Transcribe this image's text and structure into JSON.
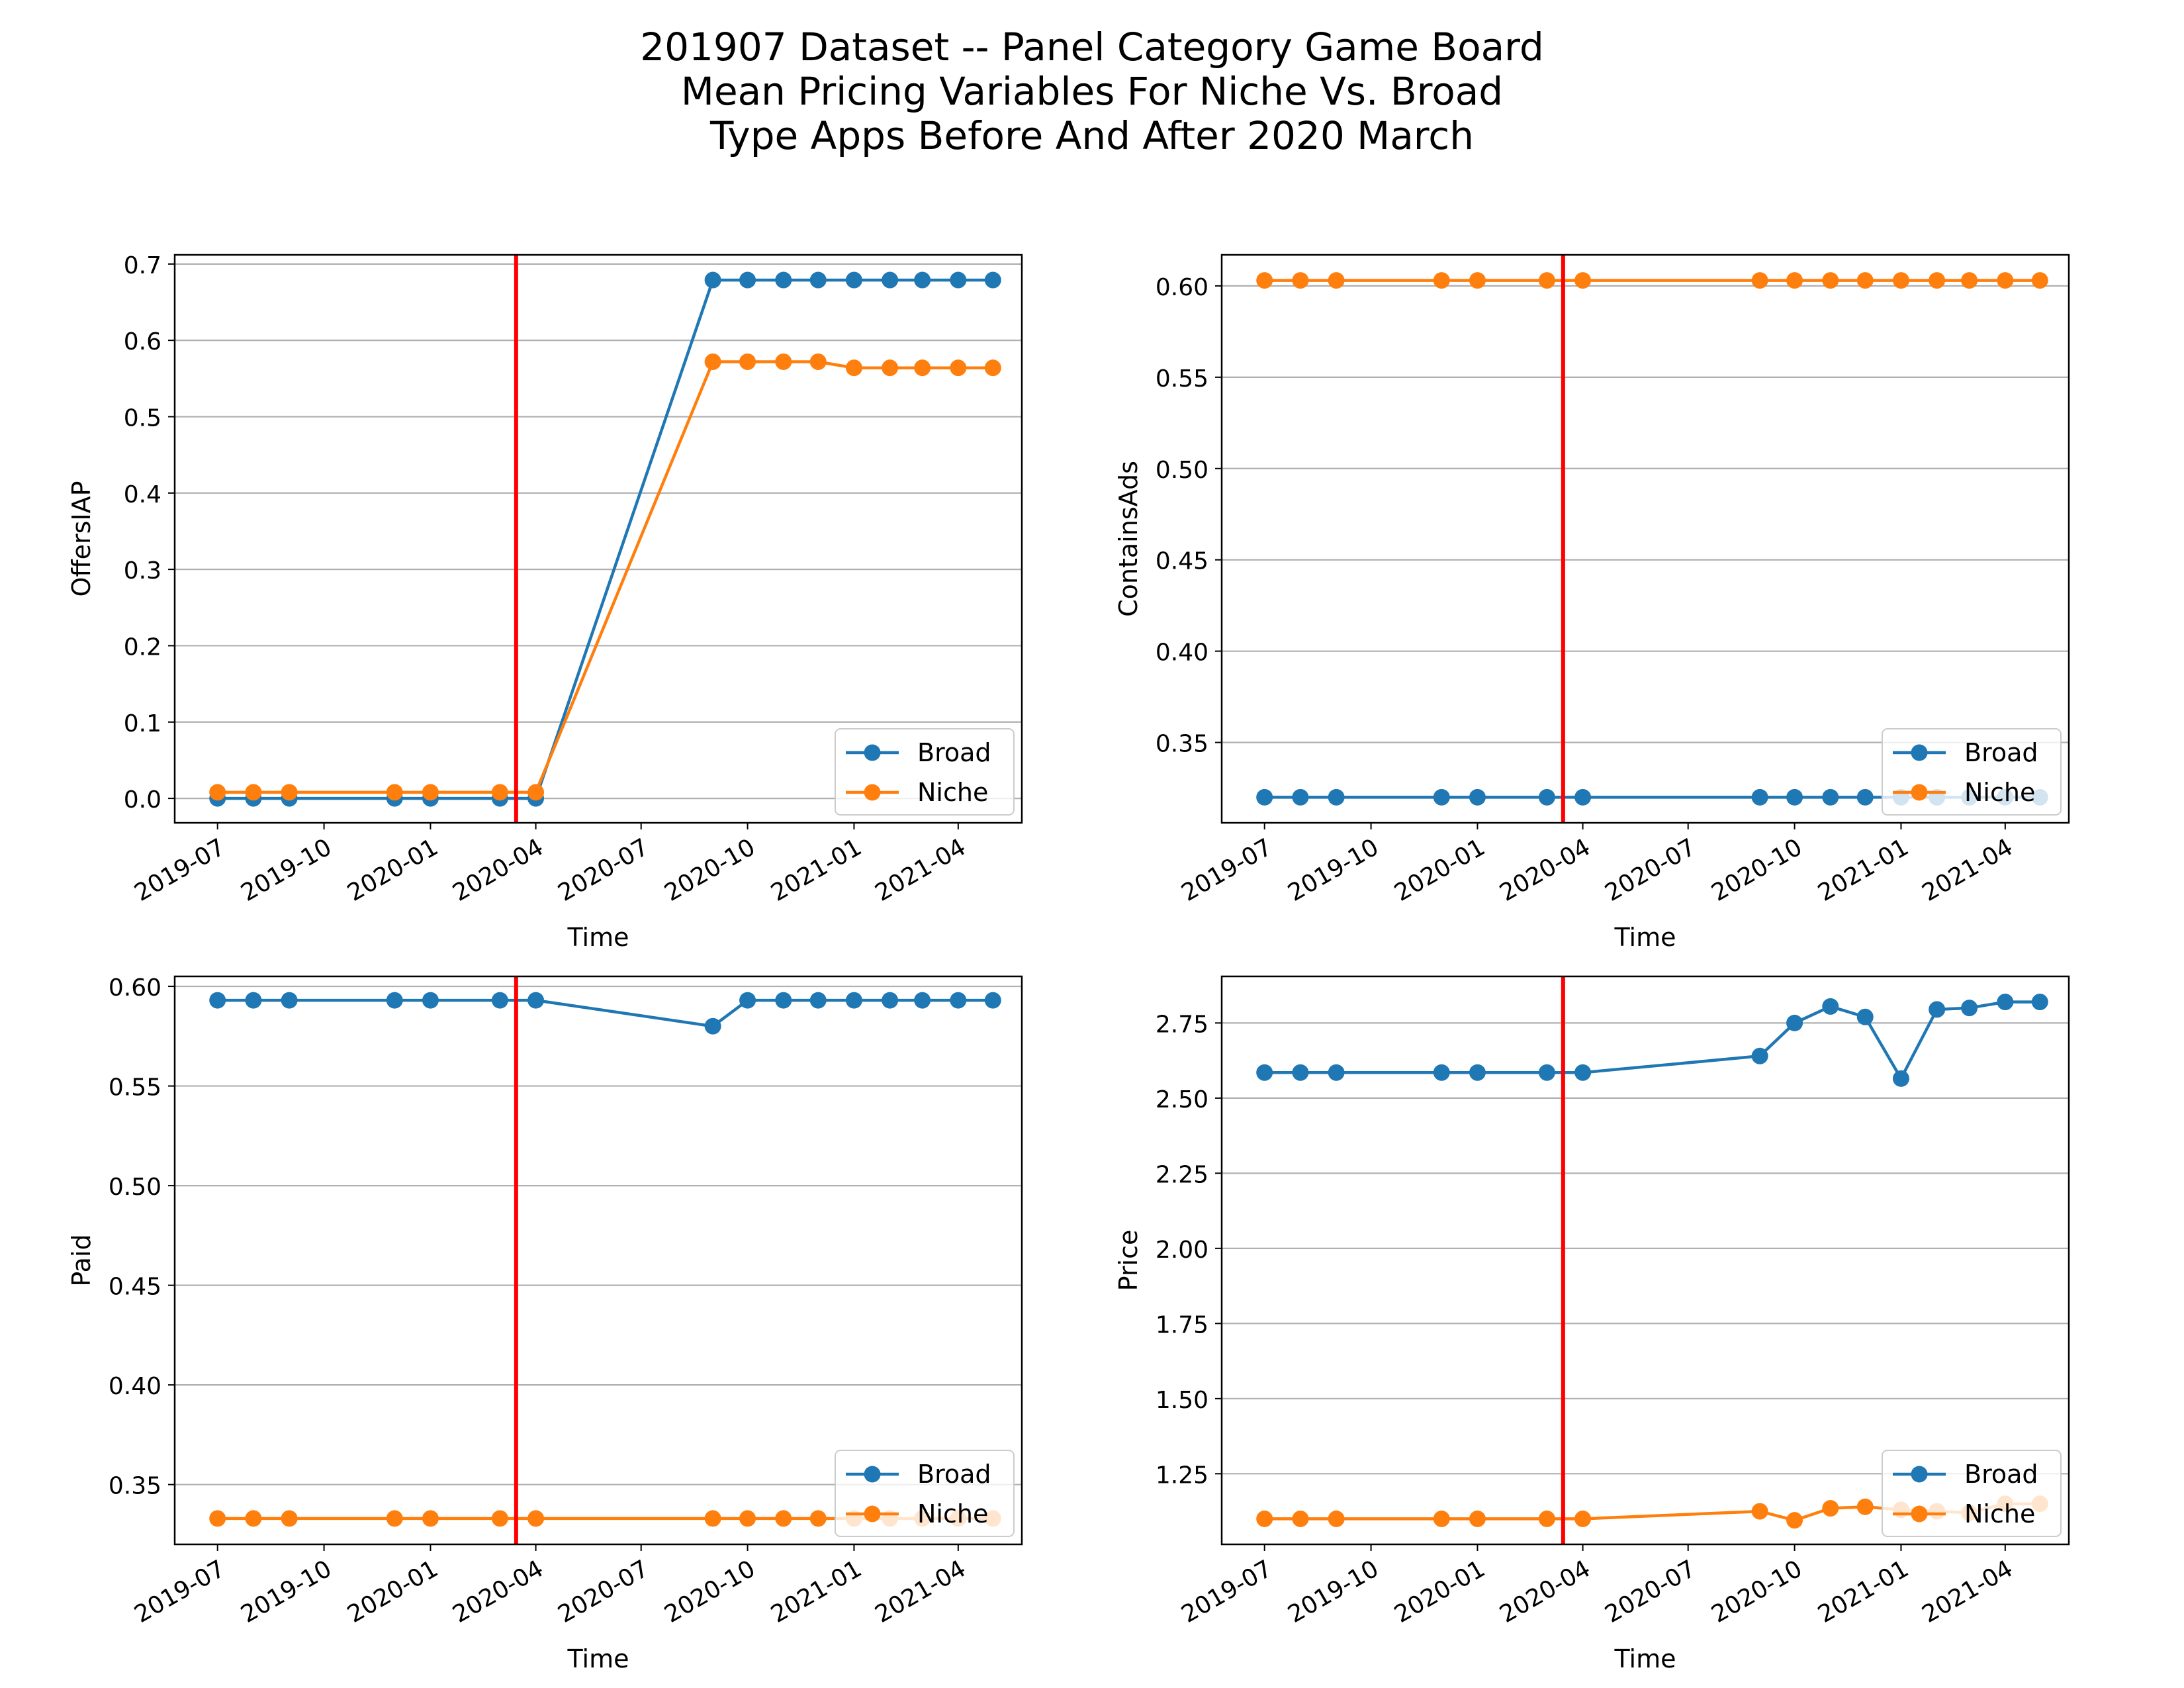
{
  "figure": {
    "title_lines": [
      "201907 Dataset -- Panel Category Game Board",
      "Mean Pricing Variables For Niche Vs. Broad",
      "Type Apps Before And After 2020 March"
    ]
  },
  "colors": {
    "broad": "#1f77b4",
    "niche": "#ff7f0e",
    "event_line": "#ff0000",
    "grid": "#b0b0b0"
  },
  "chart_data": [
    {
      "type": "line",
      "xlabel": "Time",
      "ylabel": "OffersIAP",
      "ylim": [
        -0.032,
        0.712
      ],
      "yticks": [
        0.0,
        0.1,
        0.2,
        0.3,
        0.4,
        0.5,
        0.6,
        0.7
      ],
      "ytick_labels": [
        "0.0",
        "0.1",
        "0.2",
        "0.3",
        "0.4",
        "0.5",
        "0.6",
        "0.7"
      ],
      "xlim": [
        "2019-05-25",
        "2021-05-26"
      ],
      "xtick_labels": [
        "2019-07",
        "2019-10",
        "2020-01",
        "2020-04",
        "2020-07",
        "2020-10",
        "2021-01",
        "2021-04"
      ],
      "event_date": "2020-03-15",
      "grid": "y",
      "legend": "lower right",
      "series": [
        {
          "name": "Broad",
          "x": [
            "2019-07-01",
            "2019-08-01",
            "2019-09-01",
            "2019-12-01",
            "2020-01-01",
            "2020-03-01",
            "2020-04-01",
            "2020-09-01",
            "2020-10-01",
            "2020-11-01",
            "2020-12-01",
            "2021-01-01",
            "2021-02-01",
            "2021-03-01",
            "2021-04-01",
            "2021-05-01"
          ],
          "values": [
            0.0,
            0.0,
            0.0,
            0.0,
            0.0,
            0.0,
            0.0,
            0.679,
            0.679,
            0.679,
            0.679,
            0.679,
            0.679,
            0.679,
            0.679,
            0.679
          ]
        },
        {
          "name": "Niche",
          "x": [
            "2019-07-01",
            "2019-08-01",
            "2019-09-01",
            "2019-12-01",
            "2020-01-01",
            "2020-03-01",
            "2020-04-01",
            "2020-09-01",
            "2020-10-01",
            "2020-11-01",
            "2020-12-01",
            "2021-01-01",
            "2021-02-01",
            "2021-03-01",
            "2021-04-01",
            "2021-05-01"
          ],
          "values": [
            0.008,
            0.008,
            0.008,
            0.008,
            0.008,
            0.008,
            0.008,
            0.572,
            0.572,
            0.572,
            0.572,
            0.564,
            0.564,
            0.564,
            0.564,
            0.564
          ]
        }
      ]
    },
    {
      "type": "line",
      "xlabel": "Time",
      "ylabel": "ContainsAds",
      "ylim": [
        0.306,
        0.617
      ],
      "yticks": [
        0.35,
        0.4,
        0.45,
        0.5,
        0.55,
        0.6
      ],
      "ytick_labels": [
        "0.35",
        "0.40",
        "0.45",
        "0.50",
        "0.55",
        "0.60"
      ],
      "xlim": [
        "2019-05-25",
        "2021-05-26"
      ],
      "xtick_labels": [
        "2019-07",
        "2019-10",
        "2020-01",
        "2020-04",
        "2020-07",
        "2020-10",
        "2021-01",
        "2021-04"
      ],
      "event_date": "2020-03-15",
      "grid": "y",
      "legend": "lower right",
      "series": [
        {
          "name": "Broad",
          "x": [
            "2019-07-01",
            "2019-08-01",
            "2019-09-01",
            "2019-12-01",
            "2020-01-01",
            "2020-03-01",
            "2020-04-01",
            "2020-09-01",
            "2020-10-01",
            "2020-11-01",
            "2020-12-01",
            "2021-01-01",
            "2021-02-01",
            "2021-03-01",
            "2021-04-01",
            "2021-05-01"
          ],
          "values": [
            0.32,
            0.32,
            0.32,
            0.32,
            0.32,
            0.32,
            0.32,
            0.32,
            0.32,
            0.32,
            0.32,
            0.32,
            0.32,
            0.32,
            0.32,
            0.32
          ]
        },
        {
          "name": "Niche",
          "x": [
            "2019-07-01",
            "2019-08-01",
            "2019-09-01",
            "2019-12-01",
            "2020-01-01",
            "2020-03-01",
            "2020-04-01",
            "2020-09-01",
            "2020-10-01",
            "2020-11-01",
            "2020-12-01",
            "2021-01-01",
            "2021-02-01",
            "2021-03-01",
            "2021-04-01",
            "2021-05-01"
          ],
          "values": [
            0.603,
            0.603,
            0.603,
            0.603,
            0.603,
            0.603,
            0.603,
            0.603,
            0.603,
            0.603,
            0.603,
            0.603,
            0.603,
            0.603,
            0.603,
            0.603
          ]
        }
      ]
    },
    {
      "type": "line",
      "xlabel": "Time",
      "ylabel": "Paid",
      "ylim": [
        0.32,
        0.605
      ],
      "yticks": [
        0.35,
        0.4,
        0.45,
        0.5,
        0.55,
        0.6
      ],
      "ytick_labels": [
        "0.35",
        "0.40",
        "0.45",
        "0.50",
        "0.55",
        "0.60"
      ],
      "xlim": [
        "2019-05-25",
        "2021-05-26"
      ],
      "xtick_labels": [
        "2019-07",
        "2019-10",
        "2020-01",
        "2020-04",
        "2020-07",
        "2020-10",
        "2021-01",
        "2021-04"
      ],
      "event_date": "2020-03-15",
      "grid": "y",
      "legend": "lower right",
      "series": [
        {
          "name": "Broad",
          "x": [
            "2019-07-01",
            "2019-08-01",
            "2019-09-01",
            "2019-12-01",
            "2020-01-01",
            "2020-03-01",
            "2020-04-01",
            "2020-09-01",
            "2020-10-01",
            "2020-11-01",
            "2020-12-01",
            "2021-01-01",
            "2021-02-01",
            "2021-03-01",
            "2021-04-01",
            "2021-05-01"
          ],
          "values": [
            0.593,
            0.593,
            0.593,
            0.593,
            0.593,
            0.593,
            0.593,
            0.58,
            0.593,
            0.593,
            0.593,
            0.593,
            0.593,
            0.593,
            0.593,
            0.593
          ]
        },
        {
          "name": "Niche",
          "x": [
            "2019-07-01",
            "2019-08-01",
            "2019-09-01",
            "2019-12-01",
            "2020-01-01",
            "2020-03-01",
            "2020-04-01",
            "2020-09-01",
            "2020-10-01",
            "2020-11-01",
            "2020-12-01",
            "2021-01-01",
            "2021-02-01",
            "2021-03-01",
            "2021-04-01",
            "2021-05-01"
          ],
          "values": [
            0.333,
            0.333,
            0.333,
            0.333,
            0.333,
            0.333,
            0.333,
            0.333,
            0.333,
            0.333,
            0.333,
            0.333,
            0.333,
            0.333,
            0.333,
            0.333
          ]
        }
      ]
    },
    {
      "type": "line",
      "xlabel": "Time",
      "ylabel": "Price",
      "ylim": [
        1.015,
        2.905
      ],
      "yticks": [
        1.25,
        1.5,
        1.75,
        2.0,
        2.25,
        2.5,
        2.75
      ],
      "ytick_labels": [
        "1.25",
        "1.50",
        "1.75",
        "2.00",
        "2.25",
        "2.50",
        "2.75"
      ],
      "xlim": [
        "2019-05-25",
        "2021-05-26"
      ],
      "xtick_labels": [
        "2019-07",
        "2019-10",
        "2020-01",
        "2020-04",
        "2020-07",
        "2020-10",
        "2021-01",
        "2021-04"
      ],
      "event_date": "2020-03-15",
      "grid": "y",
      "legend": "lower right",
      "series": [
        {
          "name": "Broad",
          "x": [
            "2019-07-01",
            "2019-08-01",
            "2019-09-01",
            "2019-12-01",
            "2020-01-01",
            "2020-03-01",
            "2020-04-01",
            "2020-09-01",
            "2020-10-01",
            "2020-11-01",
            "2020-12-01",
            "2021-01-01",
            "2021-02-01",
            "2021-03-01",
            "2021-04-01",
            "2021-05-01"
          ],
          "values": [
            2.585,
            2.585,
            2.585,
            2.585,
            2.585,
            2.585,
            2.585,
            2.64,
            2.75,
            2.805,
            2.77,
            2.565,
            2.795,
            2.8,
            2.82,
            2.82
          ]
        },
        {
          "name": "Niche",
          "x": [
            "2019-07-01",
            "2019-08-01",
            "2019-09-01",
            "2019-12-01",
            "2020-01-01",
            "2020-03-01",
            "2020-04-01",
            "2020-09-01",
            "2020-10-01",
            "2020-11-01",
            "2020-12-01",
            "2021-01-01",
            "2021-02-01",
            "2021-03-01",
            "2021-04-01",
            "2021-05-01"
          ],
          "values": [
            1.1,
            1.1,
            1.1,
            1.1,
            1.1,
            1.1,
            1.1,
            1.125,
            1.095,
            1.135,
            1.14,
            1.13,
            1.125,
            1.12,
            1.15,
            1.15
          ]
        }
      ]
    }
  ]
}
